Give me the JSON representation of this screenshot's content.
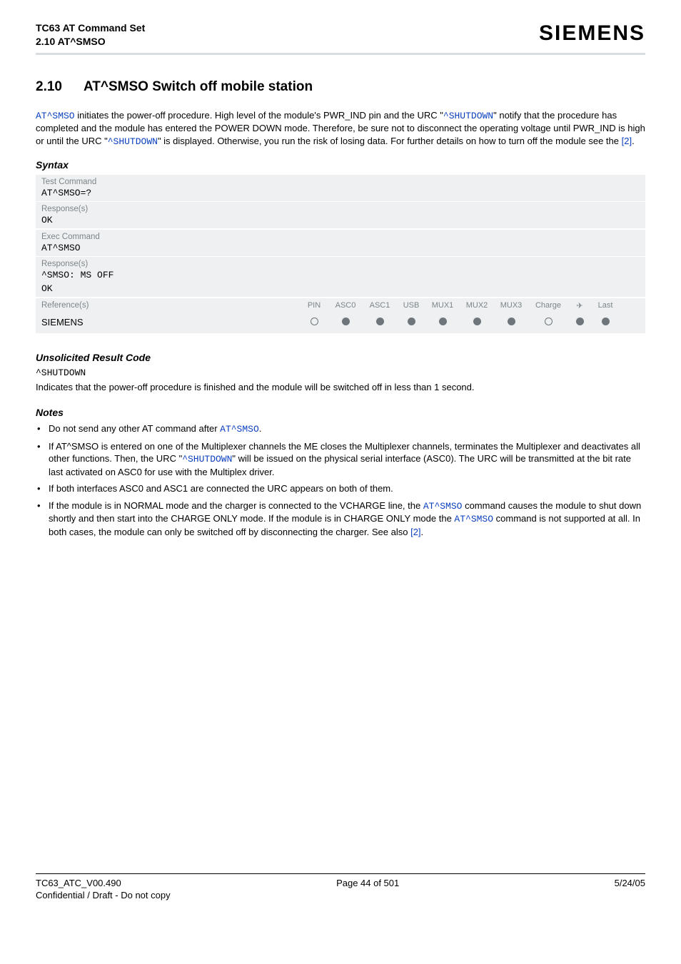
{
  "header": {
    "doc_title": "TC63 AT Command Set",
    "section_ref": "2.10 AT^SMSO",
    "logo_text": "SIEMENS"
  },
  "title": {
    "number": "2.10",
    "text": "AT^SMSO   Switch off mobile station"
  },
  "intro": {
    "cmd1": "AT^SMSO",
    "t1": " initiates the power-off procedure. High level of the module's PWR_IND pin and the URC \"",
    "urc1": "^SHUTDOWN",
    "t2": "\" notify that the procedure has completed and the module has entered the POWER DOWN mode. Therefore, be sure not to disconnect the operating voltage until PWR_IND is high or until the URC \"",
    "urc2": "^SHUTDOWN",
    "t3": "\" is displayed. Otherwise, you run the risk of losing data. For further details on how to turn off the module see the ",
    "ref": "[2]",
    "t4": "."
  },
  "syntax": {
    "heading": "Syntax",
    "test_label": "Test Command",
    "test_code": "AT^SMSO=?",
    "resp_label1": "Response(s)",
    "resp_code1": "OK",
    "exec_label": "Exec Command",
    "exec_code": "AT^SMSO",
    "resp_label2": "Response(s)",
    "resp_code2a": "^SMSO: MS OFF",
    "resp_code2b": "OK",
    "ref_label": "Reference(s)",
    "ref_name": "SIEMENS",
    "cols": {
      "c0": "PIN",
      "c1": "ASC0",
      "c2": "ASC1",
      "c3": "USB",
      "c4": "MUX1",
      "c5": "MUX2",
      "c6": "MUX3",
      "c7": "Charge",
      "c8": "✈",
      "c9": "Last"
    },
    "dots": [
      "open",
      "filled",
      "filled",
      "filled",
      "filled",
      "filled",
      "filled",
      "open",
      "filled",
      "filled"
    ]
  },
  "urc": {
    "heading": "Unsolicited Result Code",
    "code": "^SHUTDOWN",
    "text": "Indicates that the power-off procedure is finished and the module will be switched off in less than 1 second."
  },
  "notes": {
    "heading": "Notes",
    "n1a": "Do not send any other AT command after ",
    "n1cmd": "AT^SMSO",
    "n1b": ".",
    "n2a": "If AT^SMSO is entered on one of the Multiplexer channels the ME closes the Multiplexer channels, terminates the Multiplexer and deactivates all other functions. Then, the URC \"",
    "n2urc": "^SHUTDOWN",
    "n2b": "\" will be issued on the physical serial interface (ASC0). The URC will be transmitted at the bit rate last activated on ASC0 for use with the Multiplex driver.",
    "n3": "If both interfaces ASC0 and ASC1 are connected the URC appears on both of them.",
    "n4a": "If the module is in NORMAL mode and the charger is connected to the VCHARGE line, the ",
    "n4cmd1": "AT^SMSO",
    "n4b": " command causes the module to shut down shortly and then start into the CHARGE ONLY mode. If the module is in CHARGE ONLY mode the ",
    "n4cmd2": "AT^SMSO",
    "n4c": " command is not supported at all. In both cases, the module can only be switched off by disconnecting the charger. See also ",
    "n4ref": "[2]",
    "n4d": "."
  },
  "footer": {
    "left": "TC63_ATC_V00.490",
    "center": "Page 44 of 501",
    "right": "5/24/05",
    "sub": "Confidential / Draft - Do not copy"
  },
  "colors": {
    "panel_bg": "#eef0f1",
    "label_gray": "#7c8489",
    "link_blue": "#0a3fbf",
    "dot_gray": "#6f767b",
    "hr_gray": "#d9dde0"
  }
}
